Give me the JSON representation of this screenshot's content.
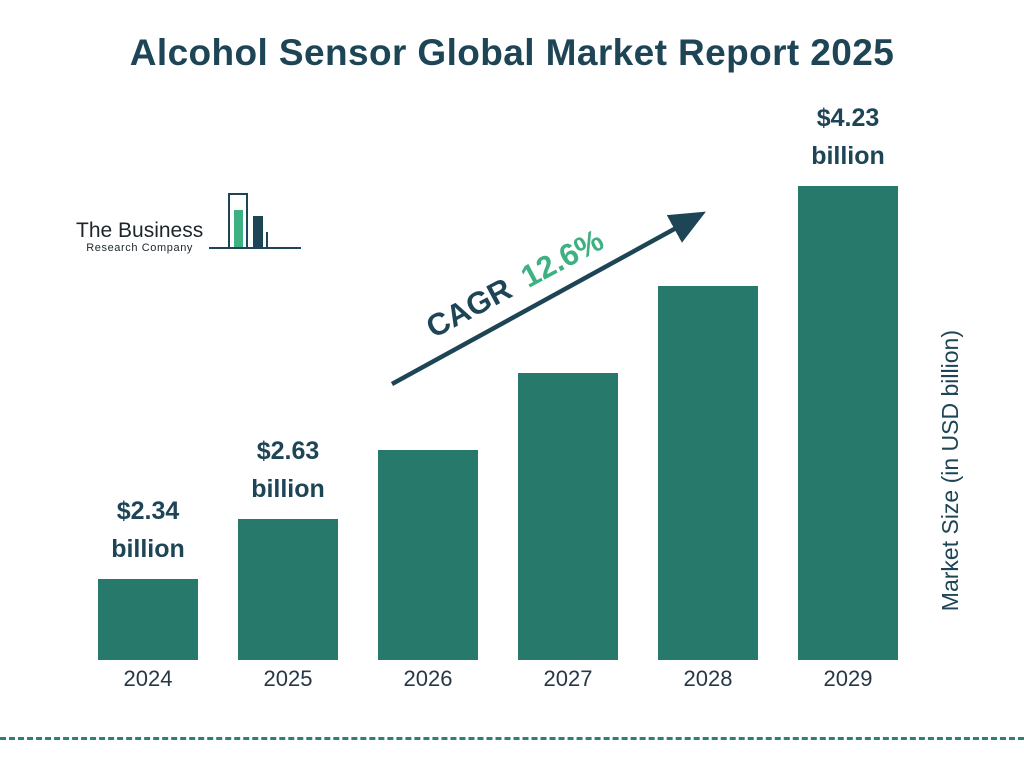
{
  "title": "Alcohol Sensor Global Market Report 2025",
  "logo": {
    "line1": "The Business",
    "line2": "Research Company"
  },
  "cagr": {
    "label": "CAGR",
    "value": "12.6%"
  },
  "y_axis_label": "Market Size (in USD billion)",
  "colors": {
    "navy": "#1d4556",
    "teal": "#27796b",
    "green": "#3db181",
    "dash": "#2e7f78",
    "dark": "#273747"
  },
  "chart_data": {
    "type": "bar",
    "title": "Alcohol Sensor Global Market Report 2025",
    "categories": [
      "2024",
      "2025",
      "2026",
      "2027",
      "2028",
      "2029"
    ],
    "values": [
      2.34,
      2.63,
      2.96,
      3.33,
      3.75,
      4.23
    ],
    "value_labels": [
      "$2.34 billion",
      "$2.63 billion",
      null,
      null,
      null,
      "$4.23 billion"
    ],
    "xlabel": "",
    "ylabel": "Market Size (in USD billion)",
    "annotation": "CAGR 12.6%",
    "legend": "none",
    "grid": false,
    "bar_color": "#27796b"
  }
}
